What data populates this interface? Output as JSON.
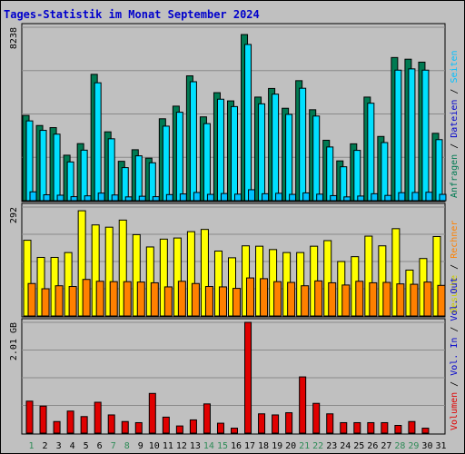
{
  "chart_data": {
    "type": "bar",
    "title": "Tages-Statistik im Monat September 2024",
    "categories": [
      "1",
      "2",
      "3",
      "4",
      "5",
      "6",
      "7",
      "8",
      "9",
      "10",
      "11",
      "12",
      "13",
      "14",
      "15",
      "16",
      "17",
      "18",
      "19",
      "20",
      "21",
      "22",
      "23",
      "24",
      "25",
      "26",
      "27",
      "28",
      "29",
      "30",
      "31"
    ],
    "weekend_days": [
      "1",
      "7",
      "8",
      "14",
      "15",
      "21",
      "22",
      "28",
      "29"
    ],
    "grid": true,
    "colors": {
      "title": "#0000cc",
      "background": "#c0c0c0",
      "frame": "#000000",
      "anfragen": "#007a52",
      "dateien": "#00e0ff",
      "seiten": "#00c0ff",
      "besuche": "#ffff00",
      "rechner": "#ff8000",
      "volumen": "#e00000",
      "weekday_label": "#000000",
      "weekend_label": "#2e8b57"
    },
    "panels": [
      {
        "name": "hits",
        "ymax_label": "8238",
        "ymax": 8238,
        "right_labels": [
          {
            "text": "Anfragen",
            "color": "#007a52"
          },
          {
            "text": " / ",
            "color": "#000000"
          },
          {
            "text": "Dateien",
            "color": "#0000cc"
          },
          {
            "text": " / ",
            "color": "#000000"
          },
          {
            "text": "Seiten",
            "color": "#00c0ff"
          }
        ],
        "series": [
          {
            "name": "Anfragen",
            "values": [
              4050,
              3570,
              3470,
              2160,
              2710,
              6000,
              3270,
              1870,
              2420,
              2020,
              3890,
              4490,
              5930,
              3980,
              5130,
              4740,
              7890,
              4920,
              5330,
              4390,
              5700,
              4320,
              2870,
              1890,
              2700,
              4920,
              3050,
              6800,
              6720,
              6580,
              3200
            ]
          },
          {
            "name": "Dateien",
            "values": [
              3790,
              3340,
              3160,
              1840,
              2400,
              5600,
              2940,
              1570,
              2130,
              1800,
              3540,
              4200,
              5650,
              3660,
              4820,
              4470,
              7420,
              4600,
              5060,
              4100,
              5340,
              4020,
              2550,
              1610,
              2390,
              4630,
              2760,
              6200,
              6260,
              6200,
              2900
            ]
          },
          {
            "name": "Seiten",
            "values": [
              420,
              280,
              260,
              190,
              230,
              360,
              270,
              180,
              210,
              190,
              290,
              320,
              390,
              300,
              340,
              310,
              520,
              330,
              350,
              300,
              370,
              310,
              240,
              180,
              220,
              330,
              250,
              380,
              390,
              400,
              300
            ]
          }
        ]
      },
      {
        "name": "visits",
        "ymax_label": "292",
        "ymax": 292,
        "right_labels": [
          {
            "text": "Besuche",
            "color": "#cccc00"
          },
          {
            "text": " / ",
            "color": "#000000"
          },
          {
            "text": "Rechner",
            "color": "#ff8000"
          }
        ],
        "series": [
          {
            "name": "Besuche",
            "values": [
              203,
              157,
              157,
              170,
              282,
              244,
              238,
              257,
              218,
              185,
              206,
              209,
              226,
              232,
              174,
              156,
              188,
              187,
              178,
              170,
              170,
              187,
              202,
              146,
              159,
              214,
              188,
              234,
              123,
              154,
              213
            ]
          },
          {
            "name": "Rechner",
            "values": [
              87,
              73,
              81,
              79,
              98,
              93,
              92,
              92,
              91,
              89,
              78,
              93,
              87,
              79,
              78,
              74,
              102,
              100,
              92,
              90,
              81,
              94,
              89,
              83,
              93,
              89,
              90,
              86,
              85,
              91,
              82
            ]
          }
        ]
      },
      {
        "name": "volume",
        "ymax_label": "2.01 GB",
        "ymax": 2.01,
        "right_labels": [
          {
            "text": "Volumen",
            "color": "#e00000"
          },
          {
            "text": " / ",
            "color": "#000000"
          },
          {
            "text": "Vol. In",
            "color": "#0000cc"
          },
          {
            "text": " / ",
            "color": "#000000"
          },
          {
            "text": "Vol. Out",
            "color": "#0000cc"
          }
        ],
        "series": [
          {
            "name": "Volumen",
            "values": [
              0.58,
              0.49,
              0.21,
              0.4,
              0.3,
              0.56,
              0.33,
              0.21,
              0.19,
              0.72,
              0.29,
              0.13,
              0.24,
              0.53,
              0.18,
              0.09,
              2.01,
              0.35,
              0.33,
              0.37,
              1.02,
              0.54,
              0.35,
              0.19,
              0.19,
              0.19,
              0.19,
              0.14,
              0.21,
              0.09,
              0.0
            ]
          }
        ]
      }
    ]
  }
}
